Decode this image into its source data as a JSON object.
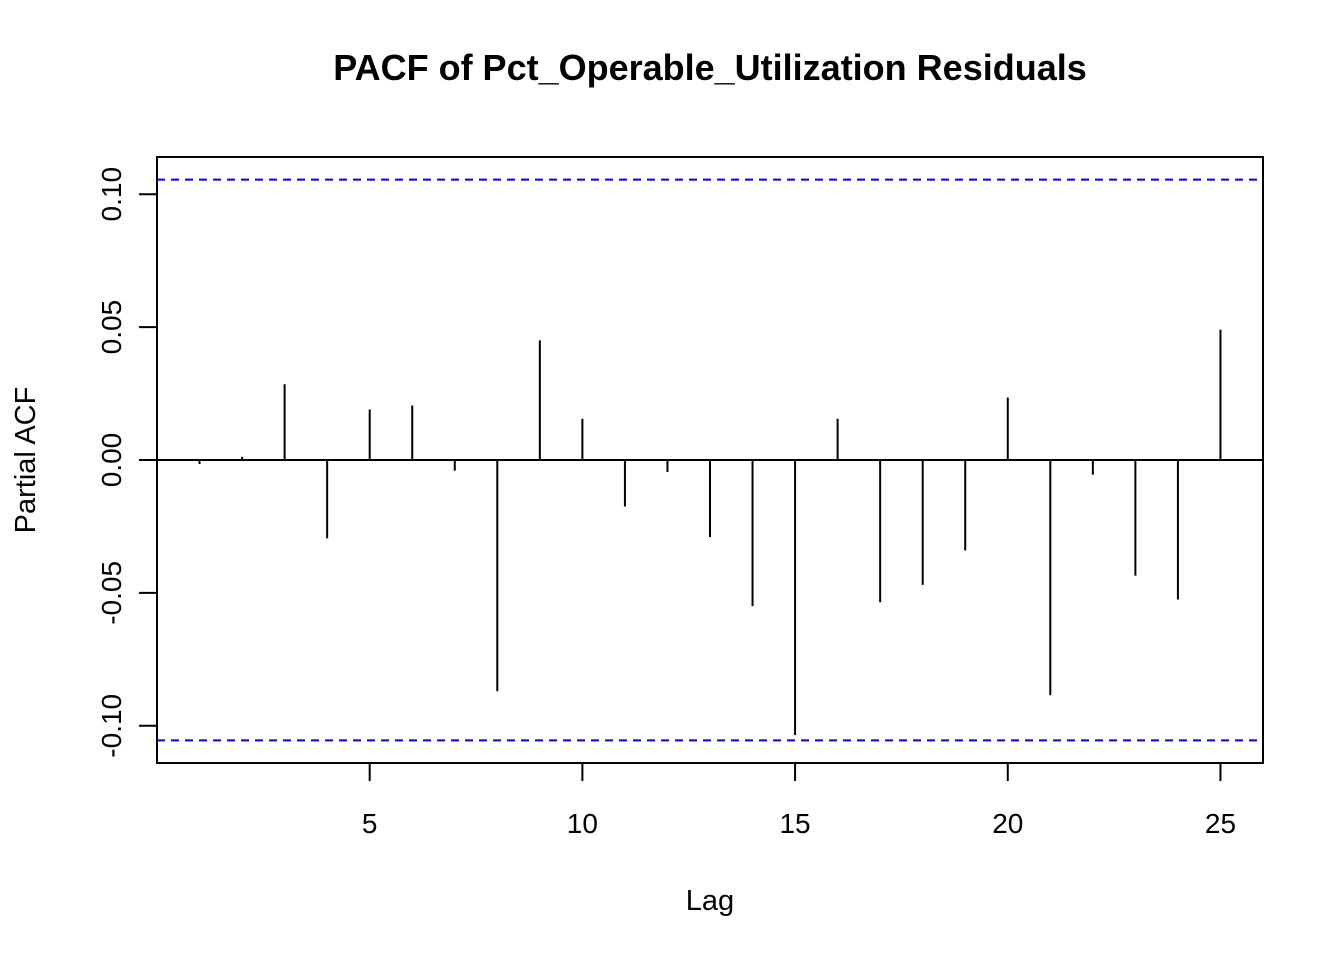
{
  "chart_data": {
    "type": "bar",
    "title": "PACF of Pct_Operable_Utilization Residuals",
    "xlabel": "Lag",
    "ylabel": "Partial ACF",
    "xlim": [
      0.0,
      26.0
    ],
    "ylim": [
      -0.114,
      0.114
    ],
    "x_ticks": [
      5,
      10,
      15,
      20,
      25
    ],
    "y_ticks": [
      -0.1,
      -0.05,
      0.0,
      0.05,
      0.1
    ],
    "y_tick_labels": [
      "-0.10",
      "-0.05",
      "0.00",
      "0.05",
      "0.10"
    ],
    "x": [
      1,
      2,
      3,
      4,
      5,
      6,
      7,
      8,
      9,
      10,
      11,
      12,
      13,
      14,
      15,
      16,
      17,
      18,
      19,
      20,
      21,
      22,
      23,
      24,
      25
    ],
    "values": [
      -0.0015,
      0.0012,
      0.0285,
      -0.0295,
      0.019,
      0.0205,
      -0.004,
      -0.087,
      0.045,
      0.0155,
      -0.0175,
      -0.0045,
      -0.029,
      -0.055,
      -0.1035,
      0.0155,
      -0.0535,
      -0.047,
      -0.034,
      0.0235,
      -0.0885,
      -0.0055,
      -0.0435,
      -0.0525,
      0.049
    ],
    "confidence_bounds": [
      0.1055,
      -0.1055
    ],
    "colors": {
      "bars": "#000000",
      "bounds": "#0000ff",
      "zero_line": "#000000"
    },
    "grid": false
  }
}
